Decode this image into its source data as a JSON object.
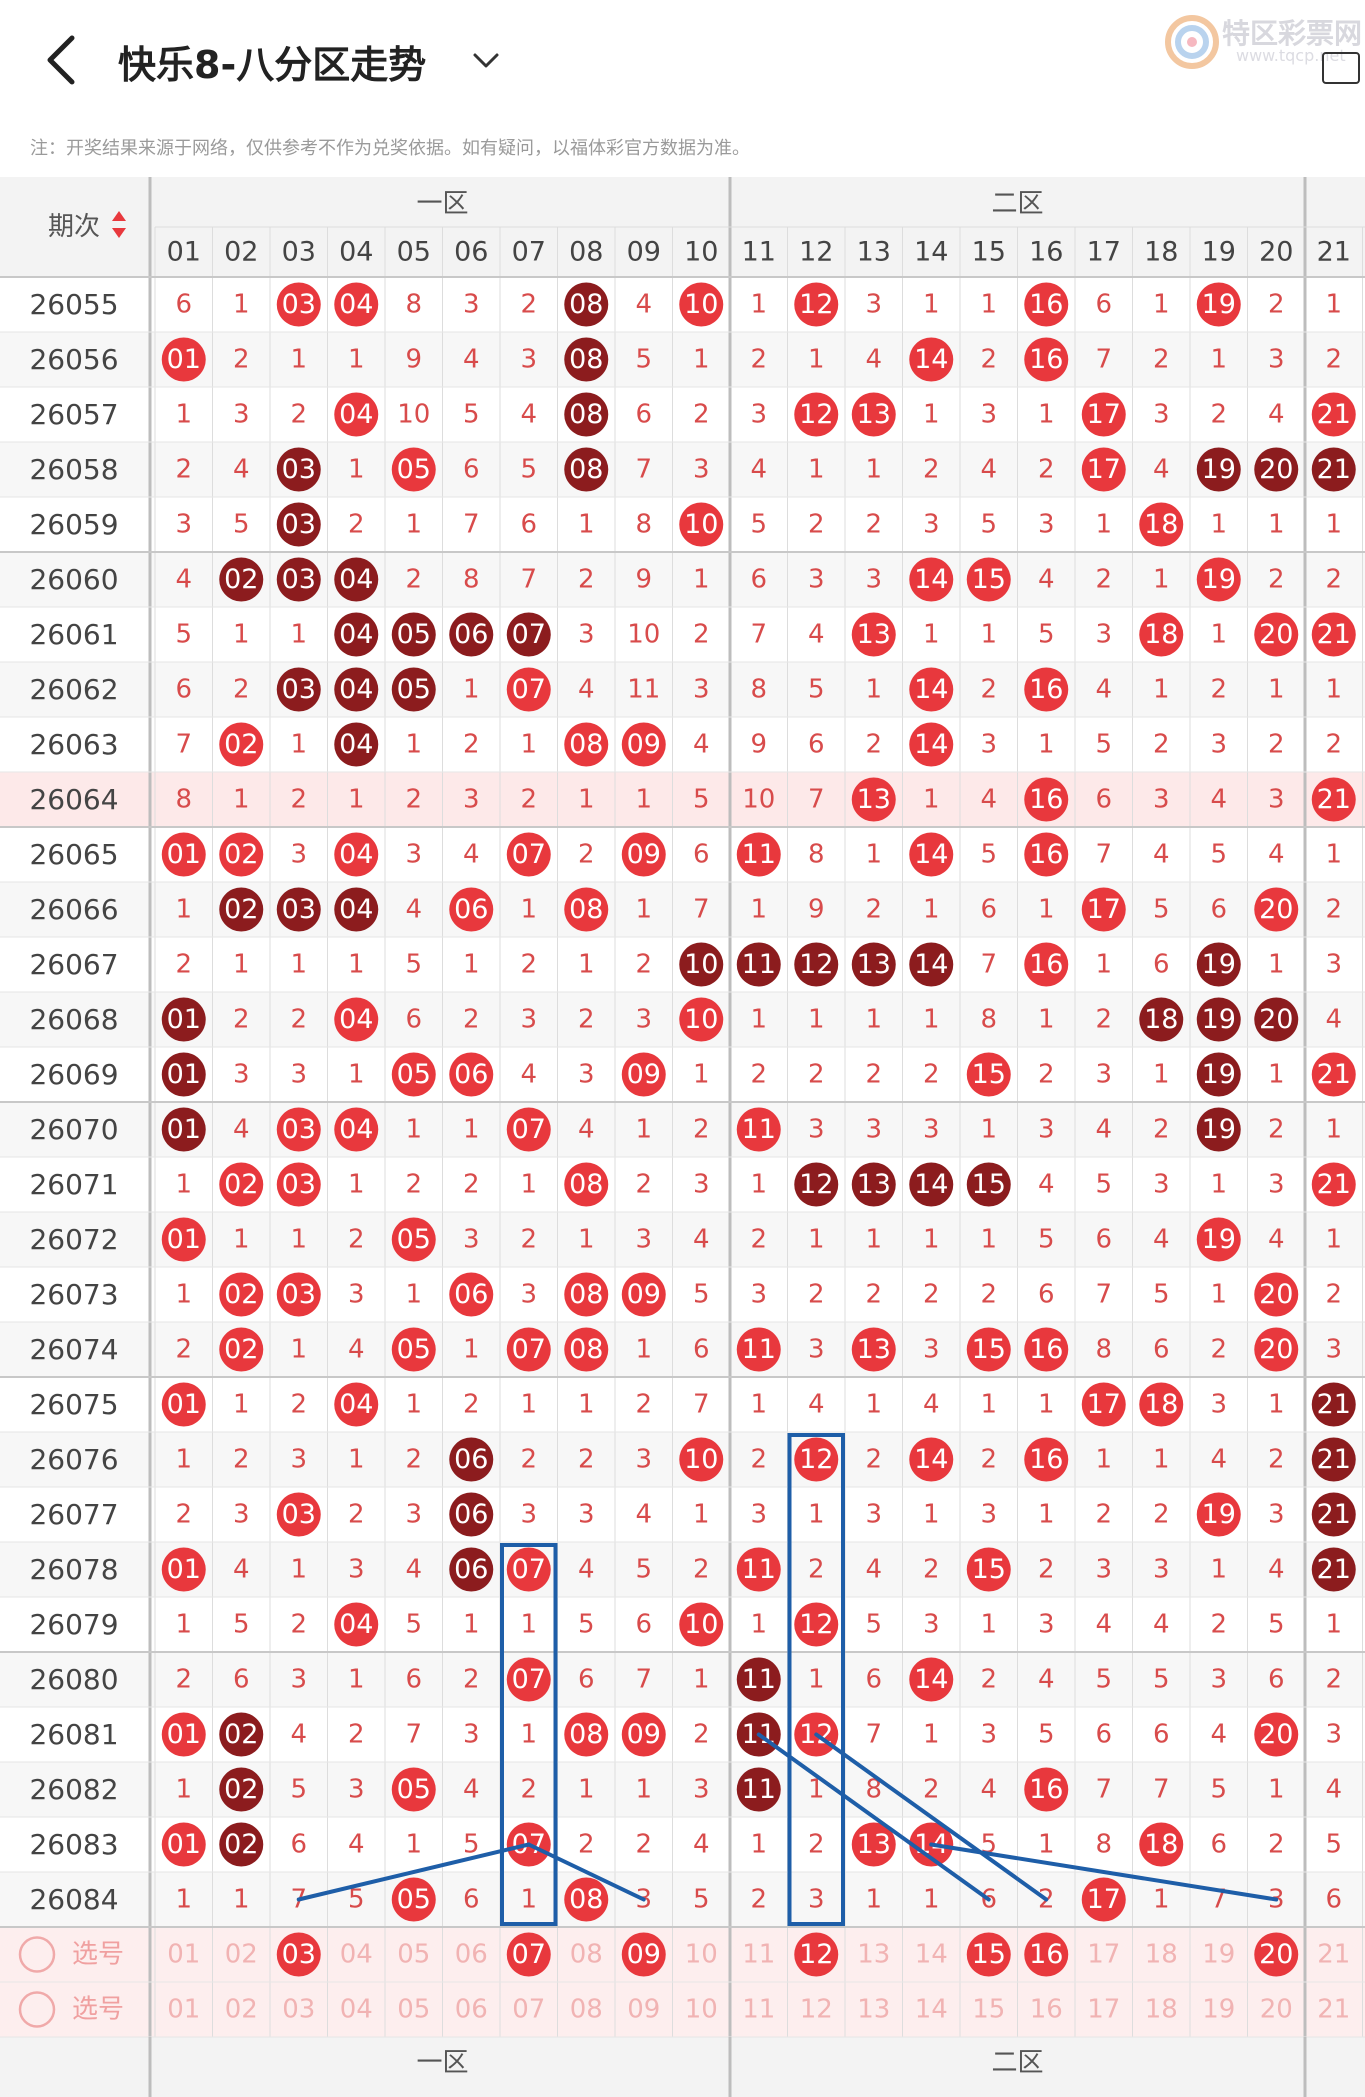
{
  "header": {
    "title": "快乐8-八分区走势",
    "back_icon": "chevron-left-icon",
    "dropdown_icon": "chevron-down-icon",
    "logo_text": "特区彩票网",
    "logo_sub": "www.tqcp.net"
  },
  "notice": "注：开奖结果来源于网络，仅供参考不作为兑奖依据。如有疑问，以福体彩官方数据为准。",
  "table": {
    "period_header": "期次",
    "zones": [
      "一区",
      "二区"
    ],
    "columns": [
      "01",
      "02",
      "03",
      "04",
      "05",
      "06",
      "07",
      "08",
      "09",
      "10",
      "11",
      "12",
      "13",
      "14",
      "15",
      "16",
      "17",
      "18",
      "19",
      "20",
      "21"
    ],
    "select_label": "选号",
    "colors": {
      "hit": "#e8383d",
      "repeat": "#8c1c1e",
      "miss_text": "#d84b4b",
      "header_bg": "#f3f3f3",
      "highlight_row": "#fde9e9",
      "line": "#1e5ea8"
    },
    "rows": [
      {
        "period": "26055",
        "cells": [
          "6",
          "1",
          "h03",
          "h04",
          "8",
          "3",
          "2",
          "r08",
          "4",
          "h10",
          "1",
          "h12",
          "3",
          "1",
          "1",
          "h16",
          "6",
          "1",
          "h19",
          "2",
          "1"
        ]
      },
      {
        "period": "26056",
        "cells": [
          "h01",
          "2",
          "1",
          "1",
          "9",
          "4",
          "3",
          "r08",
          "5",
          "1",
          "2",
          "1",
          "4",
          "h14",
          "2",
          "h16",
          "7",
          "2",
          "1",
          "3",
          "2"
        ]
      },
      {
        "period": "26057",
        "cells": [
          "1",
          "3",
          "2",
          "h04",
          "10",
          "5",
          "4",
          "r08",
          "6",
          "2",
          "3",
          "h12",
          "h13",
          "1",
          "3",
          "1",
          "h17",
          "3",
          "2",
          "4",
          "h21"
        ]
      },
      {
        "period": "26058",
        "cells": [
          "2",
          "4",
          "r03",
          "1",
          "h05",
          "6",
          "5",
          "r08",
          "7",
          "3",
          "4",
          "1",
          "1",
          "2",
          "4",
          "2",
          "h17",
          "4",
          "r19",
          "r20",
          "r21"
        ]
      },
      {
        "period": "26059",
        "cells": [
          "3",
          "5",
          "r03",
          "2",
          "1",
          "7",
          "6",
          "1",
          "8",
          "h10",
          "5",
          "2",
          "2",
          "3",
          "5",
          "3",
          "1",
          "h18",
          "1",
          "1",
          "1"
        ]
      },
      {
        "period": "26060",
        "cells": [
          "4",
          "r02",
          "r03",
          "r04",
          "2",
          "8",
          "7",
          "2",
          "9",
          "1",
          "6",
          "3",
          "3",
          "h14",
          "h15",
          "4",
          "2",
          "1",
          "h19",
          "2",
          "2"
        ]
      },
      {
        "period": "26061",
        "cells": [
          "5",
          "1",
          "1",
          "r04",
          "r05",
          "r06",
          "r07",
          "3",
          "10",
          "2",
          "7",
          "4",
          "h13",
          "1",
          "1",
          "5",
          "3",
          "h18",
          "1",
          "h20",
          "h21"
        ]
      },
      {
        "period": "26062",
        "cells": [
          "6",
          "2",
          "r03",
          "r04",
          "r05",
          "1",
          "h07",
          "4",
          "11",
          "3",
          "8",
          "5",
          "1",
          "h14",
          "2",
          "h16",
          "4",
          "1",
          "2",
          "1",
          "1"
        ]
      },
      {
        "period": "26063",
        "cells": [
          "7",
          "h02",
          "1",
          "r04",
          "1",
          "2",
          "1",
          "h08",
          "h09",
          "4",
          "9",
          "6",
          "2",
          "h14",
          "3",
          "1",
          "5",
          "2",
          "3",
          "2",
          "2"
        ]
      },
      {
        "period": "26064",
        "cells": [
          "8",
          "1",
          "2",
          "1",
          "2",
          "3",
          "2",
          "1",
          "1",
          "5",
          "10",
          "7",
          "h13",
          "1",
          "4",
          "h16",
          "6",
          "3",
          "4",
          "3",
          "h21"
        ]
      },
      {
        "period": "26065",
        "cells": [
          "h01",
          "h02",
          "3",
          "h04",
          "3",
          "4",
          "h07",
          "2",
          "h09",
          "6",
          "h11",
          "8",
          "1",
          "h14",
          "5",
          "h16",
          "7",
          "4",
          "5",
          "4",
          "1"
        ]
      },
      {
        "period": "26066",
        "cells": [
          "1",
          "r02",
          "r03",
          "r04",
          "4",
          "h06",
          "1",
          "h08",
          "1",
          "7",
          "1",
          "9",
          "2",
          "1",
          "6",
          "1",
          "h17",
          "5",
          "6",
          "h20",
          "2"
        ]
      },
      {
        "period": "26067",
        "cells": [
          "2",
          "1",
          "1",
          "1",
          "5",
          "1",
          "2",
          "1",
          "2",
          "r10",
          "r11",
          "r12",
          "r13",
          "r14",
          "7",
          "h16",
          "1",
          "6",
          "r19",
          "1",
          "3"
        ]
      },
      {
        "period": "26068",
        "cells": [
          "r01",
          "2",
          "2",
          "h04",
          "6",
          "2",
          "3",
          "2",
          "3",
          "h10",
          "1",
          "1",
          "1",
          "1",
          "8",
          "1",
          "2",
          "r18",
          "r19",
          "r20",
          "4"
        ]
      },
      {
        "period": "26069",
        "cells": [
          "r01",
          "3",
          "3",
          "1",
          "h05",
          "h06",
          "4",
          "3",
          "h09",
          "1",
          "2",
          "2",
          "2",
          "2",
          "h15",
          "2",
          "3",
          "1",
          "r19",
          "1",
          "h21"
        ]
      },
      {
        "period": "26070",
        "cells": [
          "r01",
          "4",
          "h03",
          "h04",
          "1",
          "1",
          "h07",
          "4",
          "1",
          "2",
          "h11",
          "3",
          "3",
          "3",
          "1",
          "3",
          "4",
          "2",
          "r19",
          "2",
          "1"
        ]
      },
      {
        "period": "26071",
        "cells": [
          "1",
          "h02",
          "h03",
          "1",
          "2",
          "2",
          "1",
          "h08",
          "2",
          "3",
          "1",
          "r12",
          "r13",
          "r14",
          "r15",
          "4",
          "5",
          "3",
          "1",
          "3",
          "h21"
        ]
      },
      {
        "period": "26072",
        "cells": [
          "h01",
          "1",
          "1",
          "2",
          "h05",
          "3",
          "2",
          "1",
          "3",
          "4",
          "2",
          "1",
          "1",
          "1",
          "1",
          "5",
          "6",
          "4",
          "h19",
          "4",
          "1"
        ]
      },
      {
        "period": "26073",
        "cells": [
          "1",
          "h02",
          "h03",
          "3",
          "1",
          "h06",
          "3",
          "h08",
          "h09",
          "5",
          "3",
          "2",
          "2",
          "2",
          "2",
          "6",
          "7",
          "5",
          "1",
          "h20",
          "2"
        ]
      },
      {
        "period": "26074",
        "cells": [
          "2",
          "h02",
          "1",
          "4",
          "h05",
          "1",
          "h07",
          "h08",
          "1",
          "6",
          "h11",
          "3",
          "h13",
          "3",
          "h15",
          "h16",
          "8",
          "6",
          "2",
          "h20",
          "3"
        ]
      },
      {
        "period": "26075",
        "cells": [
          "h01",
          "1",
          "2",
          "h04",
          "1",
          "2",
          "1",
          "1",
          "2",
          "7",
          "1",
          "4",
          "1",
          "4",
          "1",
          "1",
          "h17",
          "h18",
          "3",
          "1",
          "r21"
        ]
      },
      {
        "period": "26076",
        "cells": [
          "1",
          "2",
          "3",
          "1",
          "2",
          "r06",
          "2",
          "2",
          "3",
          "h10",
          "2",
          "h12",
          "2",
          "h14",
          "2",
          "h16",
          "1",
          "1",
          "4",
          "2",
          "r21"
        ]
      },
      {
        "period": "26077",
        "cells": [
          "2",
          "3",
          "h03",
          "2",
          "3",
          "r06",
          "3",
          "3",
          "4",
          "1",
          "3",
          "1",
          "3",
          "1",
          "3",
          "1",
          "2",
          "2",
          "h19",
          "3",
          "r21"
        ]
      },
      {
        "period": "26078",
        "cells": [
          "h01",
          "4",
          "1",
          "3",
          "4",
          "r06",
          "h07",
          "4",
          "5",
          "2",
          "h11",
          "2",
          "4",
          "2",
          "h15",
          "2",
          "3",
          "3",
          "1",
          "4",
          "r21"
        ]
      },
      {
        "period": "26079",
        "cells": [
          "1",
          "5",
          "2",
          "h04",
          "5",
          "1",
          "1",
          "5",
          "6",
          "h10",
          "1",
          "h12",
          "5",
          "3",
          "1",
          "3",
          "4",
          "4",
          "2",
          "5",
          "1"
        ]
      },
      {
        "period": "26080",
        "cells": [
          "2",
          "6",
          "3",
          "1",
          "6",
          "2",
          "h07",
          "6",
          "7",
          "1",
          "r11",
          "1",
          "6",
          "h14",
          "2",
          "4",
          "5",
          "5",
          "3",
          "6",
          "2"
        ]
      },
      {
        "period": "26081",
        "cells": [
          "h01",
          "r02",
          "4",
          "2",
          "7",
          "3",
          "1",
          "h08",
          "h09",
          "2",
          "r11",
          "h12",
          "7",
          "1",
          "3",
          "5",
          "6",
          "6",
          "4",
          "h20",
          "3"
        ]
      },
      {
        "period": "26082",
        "cells": [
          "1",
          "r02",
          "5",
          "3",
          "h05",
          "4",
          "2",
          "1",
          "1",
          "3",
          "r11",
          "1",
          "8",
          "2",
          "4",
          "h16",
          "7",
          "7",
          "5",
          "1",
          "4"
        ]
      },
      {
        "period": "26083",
        "cells": [
          "h01",
          "r02",
          "6",
          "4",
          "1",
          "5",
          "h07",
          "2",
          "2",
          "4",
          "1",
          "2",
          "h13",
          "h14",
          "5",
          "1",
          "8",
          "h18",
          "6",
          "2",
          "5"
        ]
      },
      {
        "period": "26084",
        "cells": [
          "1",
          "1",
          "7",
          "5",
          "h05",
          "6",
          "1",
          "h08",
          "3",
          "5",
          "2",
          "3",
          "1",
          "1",
          "6",
          "2",
          "h17",
          "1",
          "7",
          "3",
          "6"
        ]
      }
    ],
    "select_rows": [
      {
        "label": "选号",
        "picked": [
          "03",
          "07",
          "09",
          "12",
          "15",
          "16",
          "20"
        ]
      },
      {
        "label": "选号",
        "picked": []
      }
    ]
  }
}
